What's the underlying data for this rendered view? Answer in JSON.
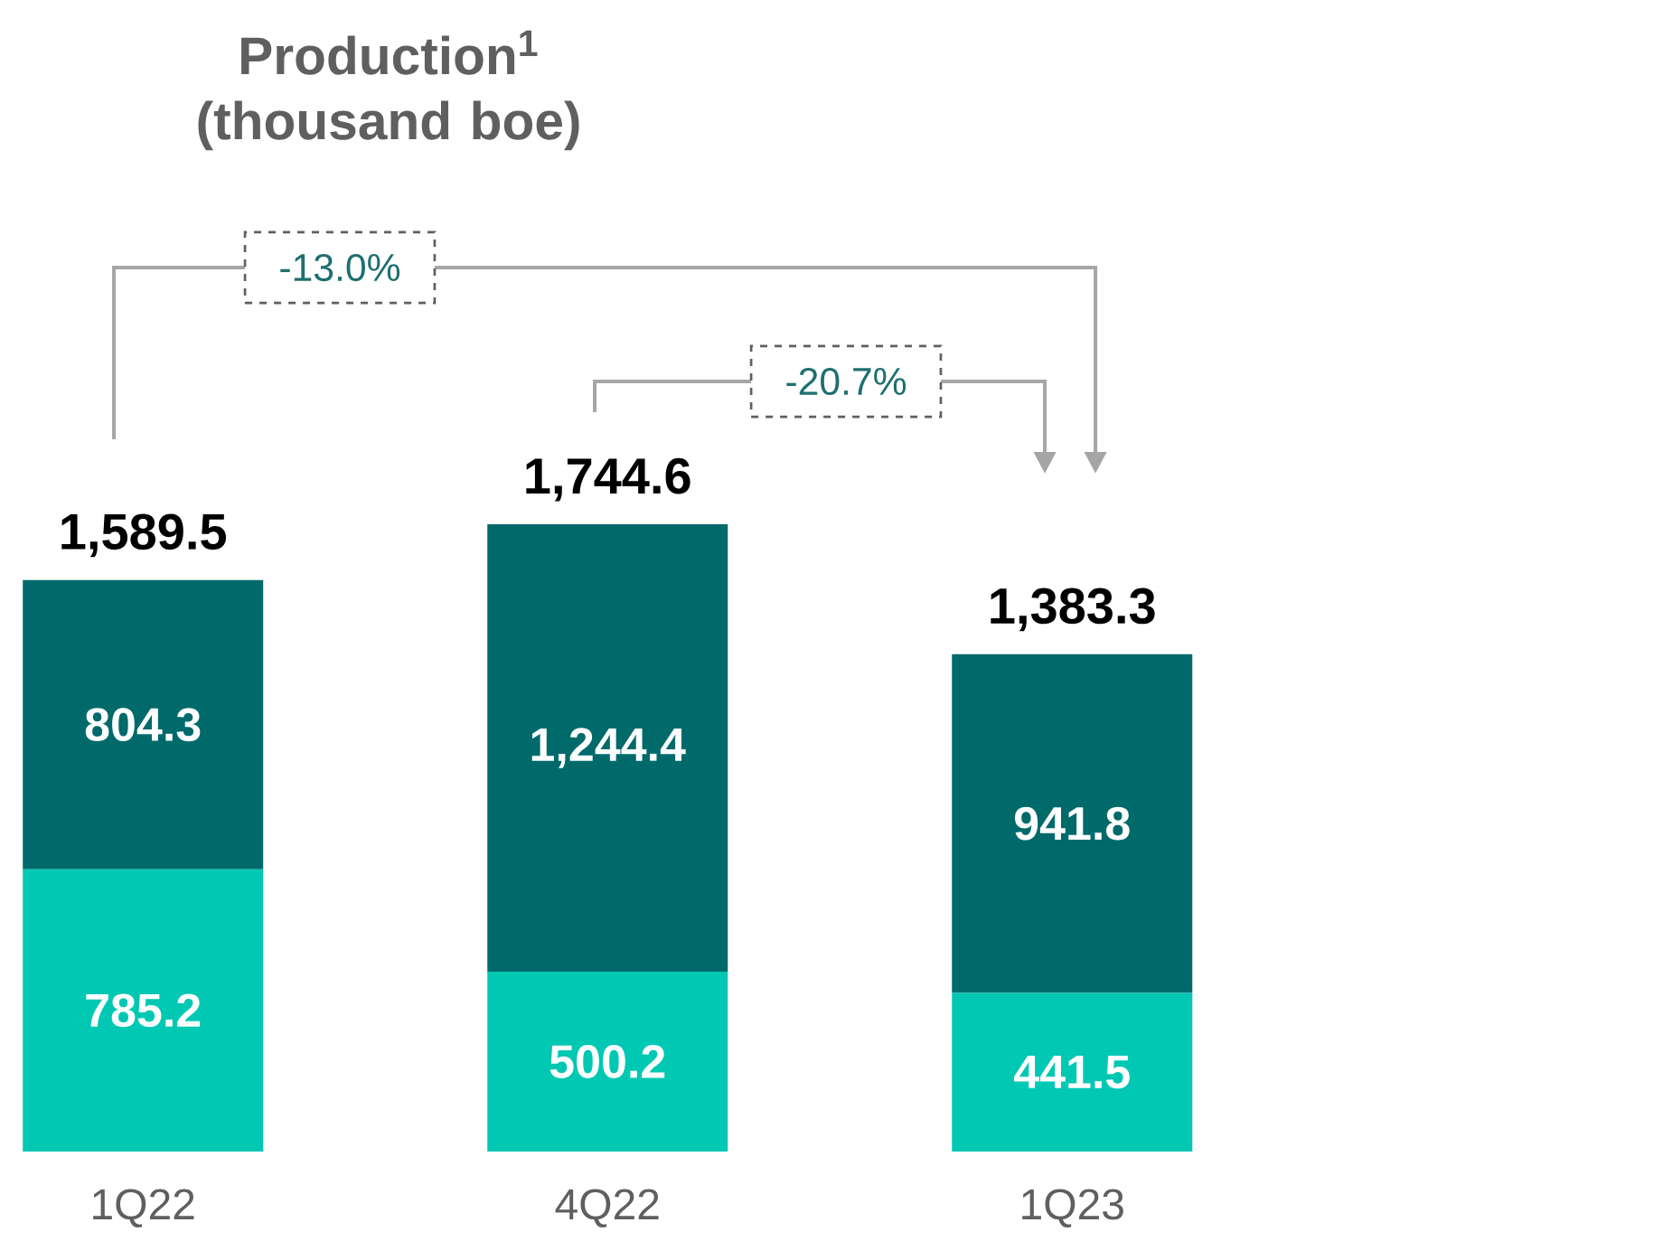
{
  "chart_data": {
    "type": "bar",
    "stacked": true,
    "title": "Production$^{1}$ (thousand boe)",
    "categories": [
      "1Q22",
      "4Q22",
      "1Q23"
    ],
    "series": [
      {
        "color": "#00c8b3",
        "values": [
          785.2,
          500.2,
          441.5
        ],
        "value_labels": [
          "785.2",
          "500.2",
          "441.5"
        ]
      },
      {
        "color": "#006a6b",
        "values": [
          804.3,
          1244.4,
          941.8
        ],
        "value_labels": [
          "804.3",
          "1,244.4",
          "941.8"
        ]
      }
    ],
    "totals": [
      "1,589.5",
      "1,744.6",
      "1,383.3"
    ],
    "annotations": [
      "-13.0%",
      "-20.7%"
    ]
  }
}
